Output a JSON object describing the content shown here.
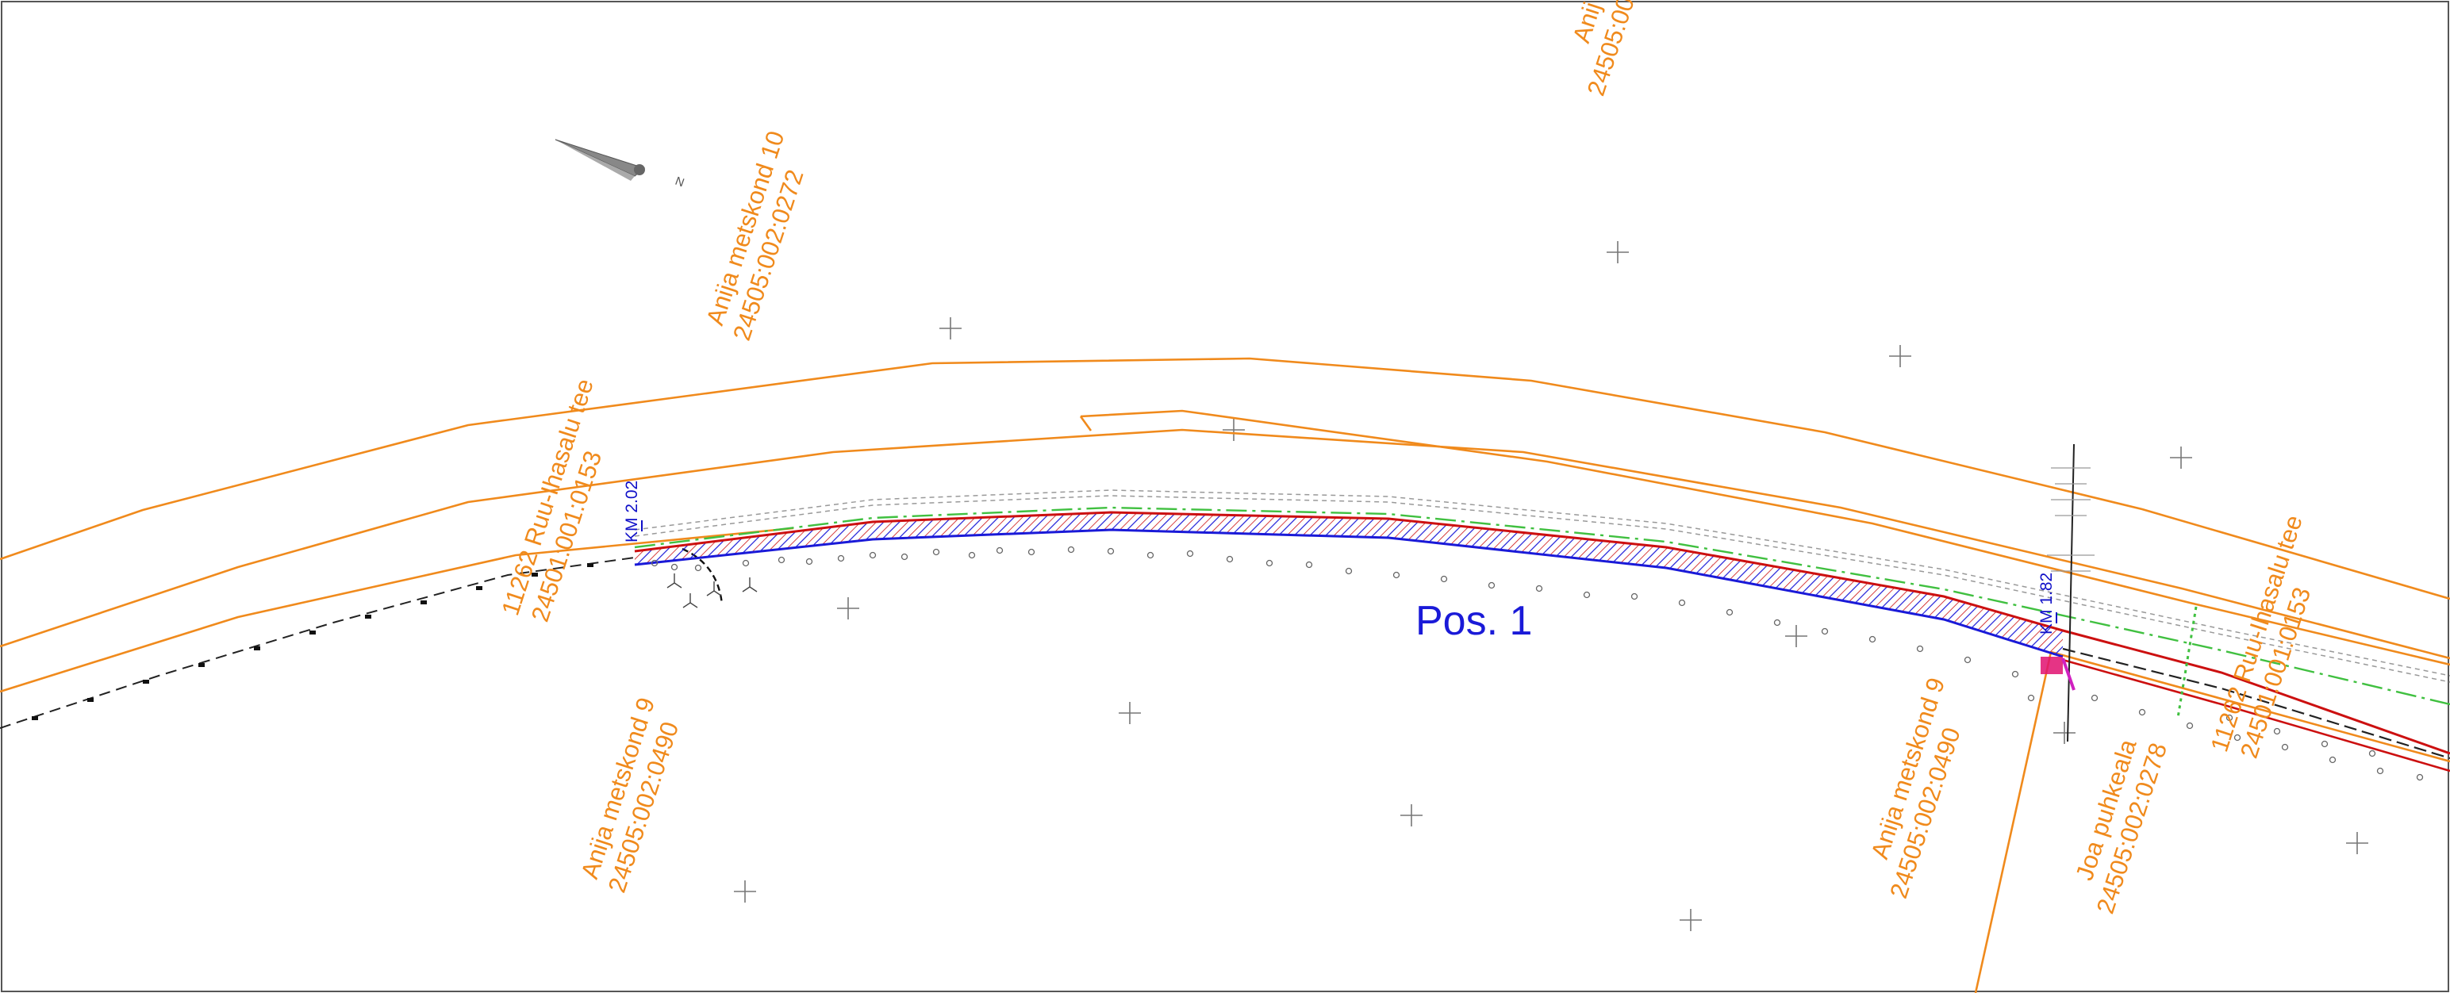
{
  "position_label": "Pos. 1",
  "parcel_labels": [
    {
      "id": "anija-10",
      "name": "Anija metskond 10",
      "code": "24505:002:0272"
    },
    {
      "id": "road-west",
      "name": "11262 Ruu-Ihasalu tee",
      "code": "24501:001:0153"
    },
    {
      "id": "anija-9-west",
      "name": "Anija metskond 9",
      "code": "24505:002:0490"
    },
    {
      "id": "anija-9-east",
      "name": "Anija metskond 9",
      "code": "24505:002:0490"
    },
    {
      "id": "joa",
      "name": "Joa puhkeala",
      "code": "24505:002:0278"
    },
    {
      "id": "road-east",
      "name": "11262 Ruu-Ihasalu tee",
      "code": "24501:001:0153"
    },
    {
      "id": "top-cut",
      "name": "Anij",
      "code": "24505:00"
    }
  ],
  "chainage_labels": [
    {
      "id": "km-202",
      "text": "KM 2.02"
    },
    {
      "id": "km-182",
      "text": "KM 1.82"
    }
  ],
  "north_arrow": {
    "icon": "north-arrow-icon",
    "letter": "N"
  },
  "colors": {
    "parcel_boundary": "#f08a1c",
    "road_edge": "#1a1ad8",
    "hatch": "#cc1010",
    "green_line": "#40c040",
    "label_blue": "#1a1ad8"
  }
}
